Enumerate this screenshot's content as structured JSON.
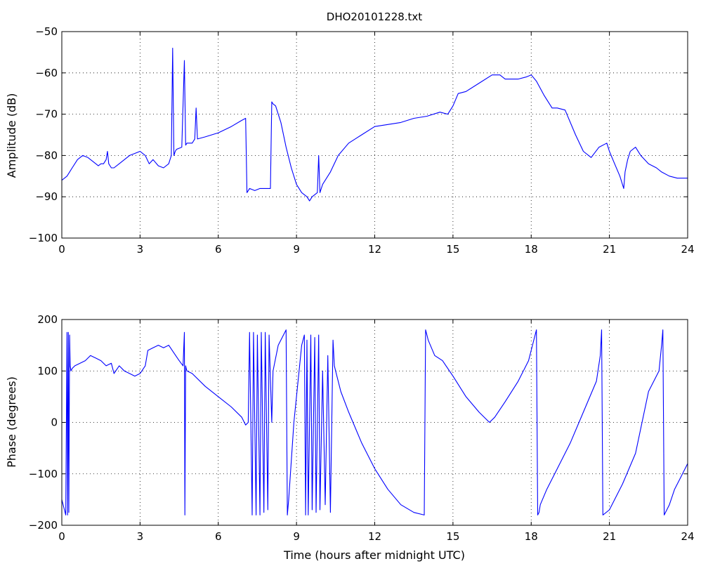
{
  "chart_data": [
    {
      "type": "line",
      "title": "DHO20101228.txt",
      "xlabel": "",
      "ylabel": "Amplitude (dB)",
      "xlim": [
        0,
        24
      ],
      "ylim": [
        -100,
        -50
      ],
      "xticks": [
        0,
        3,
        6,
        9,
        12,
        15,
        18,
        21,
        24
      ],
      "yticks": [
        -100,
        -90,
        -80,
        -70,
        -60,
        -50
      ],
      "grid": true,
      "line_color": "#0000ff",
      "x": [
        0.0,
        0.2,
        0.4,
        0.6,
        0.8,
        1.0,
        1.2,
        1.4,
        1.5,
        1.6,
        1.7,
        1.75,
        1.8,
        1.9,
        2.0,
        2.2,
        2.4,
        2.6,
        2.8,
        3.0,
        3.2,
        3.35,
        3.5,
        3.7,
        3.9,
        4.1,
        4.2,
        4.25,
        4.3,
        4.35,
        4.4,
        4.6,
        4.7,
        4.75,
        4.8,
        5.0,
        5.1,
        5.15,
        5.2,
        5.5,
        6.0,
        6.5,
        6.9,
        7.05,
        7.1,
        7.2,
        7.4,
        7.6,
        7.8,
        8.0,
        8.05,
        8.1,
        8.2,
        8.4,
        8.6,
        8.8,
        9.0,
        9.2,
        9.4,
        9.5,
        9.6,
        9.8,
        9.85,
        9.9,
        10.0,
        10.3,
        10.6,
        11.0,
        11.5,
        12.0,
        12.5,
        13.0,
        13.5,
        14.0,
        14.5,
        14.8,
        15.0,
        15.2,
        15.5,
        16.0,
        16.5,
        16.8,
        17.0,
        17.3,
        17.5,
        17.8,
        18.0,
        18.2,
        18.5,
        18.8,
        19.0,
        19.3,
        19.7,
        20.0,
        20.3,
        20.6,
        20.9,
        21.0,
        21.2,
        21.4,
        21.55,
        21.6,
        21.7,
        21.8,
        22.0,
        22.2,
        22.5,
        22.8,
        23.0,
        23.3,
        23.6,
        24.0
      ],
      "values": [
        -86,
        -85,
        -83,
        -81,
        -80,
        -80.5,
        -81.5,
        -82.5,
        -82,
        -82,
        -81,
        -79,
        -82,
        -83,
        -83,
        -82,
        -81,
        -80,
        -79.5,
        -79,
        -80,
        -82,
        -81,
        -82.5,
        -83,
        -82,
        -80,
        -54,
        -80,
        -79,
        -78.5,
        -78,
        -57,
        -77.5,
        -77,
        -77,
        -76,
        -68.5,
        -76,
        -75.5,
        -74.5,
        -73,
        -71.5,
        -71,
        -89,
        -88,
        -88.5,
        -88,
        -88,
        -88,
        -67,
        -67.5,
        -68,
        -72,
        -78,
        -83,
        -87,
        -89,
        -90,
        -91,
        -90,
        -89,
        -80,
        -89,
        -87,
        -84,
        -80,
        -77,
        -75,
        -73,
        -72.5,
        -72,
        -71,
        -70.5,
        -69.5,
        -70,
        -68,
        -65,
        -64.5,
        -62.5,
        -60.5,
        -60.5,
        -61.5,
        -61.5,
        -61.5,
        -61,
        -60.5,
        -62,
        -65.5,
        -68.5,
        -68.5,
        -69,
        -75,
        -79,
        -80.5,
        -78,
        -77,
        -79,
        -82,
        -85,
        -88,
        -84,
        -81,
        -79,
        -78,
        -80,
        -82,
        -83,
        -84,
        -85,
        -85.5,
        -85.5
      ]
    },
    {
      "type": "line",
      "title": "",
      "xlabel": "Time (hours after midnight UTC)",
      "ylabel": "Phase (degrees)",
      "xlim": [
        0,
        24
      ],
      "ylim": [
        -200,
        200
      ],
      "xticks": [
        0,
        3,
        6,
        9,
        12,
        15,
        18,
        21,
        24
      ],
      "yticks": [
        -200,
        -100,
        0,
        100,
        200
      ],
      "grid": true,
      "line_color": "#0000ff",
      "x": [
        0.0,
        0.1,
        0.15,
        0.2,
        0.22,
        0.25,
        0.27,
        0.3,
        0.32,
        0.35,
        0.4,
        0.5,
        0.7,
        0.9,
        1.1,
        1.3,
        1.5,
        1.7,
        1.9,
        2.0,
        2.2,
        2.4,
        2.6,
        2.8,
        3.0,
        3.2,
        3.3,
        3.5,
        3.7,
        3.9,
        4.1,
        4.3,
        4.5,
        4.65,
        4.7,
        4.72,
        4.75,
        4.77,
        4.8,
        5.0,
        5.5,
        6.0,
        6.5,
        6.9,
        7.05,
        7.15,
        7.2,
        7.3,
        7.35,
        7.45,
        7.5,
        7.6,
        7.65,
        7.75,
        7.8,
        7.9,
        7.95,
        8.05,
        8.1,
        8.3,
        8.6,
        8.65,
        8.7,
        8.9,
        9.1,
        9.2,
        9.3,
        9.35,
        9.4,
        9.45,
        9.55,
        9.6,
        9.7,
        9.75,
        9.85,
        9.9,
        10.0,
        10.1,
        10.2,
        10.3,
        10.4,
        10.45,
        10.5,
        10.7,
        11.0,
        11.5,
        12.0,
        12.5,
        13.0,
        13.5,
        13.9,
        13.95,
        14.0,
        14.05,
        14.3,
        14.6,
        15.0,
        15.5,
        16.0,
        16.4,
        16.6,
        17.0,
        17.5,
        17.9,
        18.2,
        18.25,
        18.3,
        18.35,
        18.6,
        19.0,
        19.5,
        20.0,
        20.5,
        20.65,
        20.7,
        20.75,
        21.0,
        21.5,
        22.0,
        22.5,
        22.9,
        23.0,
        23.05,
        23.1,
        23.3,
        23.5,
        23.7,
        24.0
      ],
      "values": [
        -150,
        -170,
        -180,
        175,
        -180,
        175,
        -175,
        170,
        110,
        100,
        105,
        110,
        115,
        120,
        130,
        125,
        120,
        110,
        115,
        95,
        110,
        100,
        95,
        90,
        95,
        110,
        140,
        145,
        150,
        145,
        150,
        135,
        120,
        110,
        175,
        -180,
        110,
        105,
        100,
        95,
        70,
        50,
        30,
        10,
        -5,
        0,
        175,
        -180,
        175,
        -180,
        170,
        -180,
        175,
        -175,
        175,
        -170,
        170,
        0,
        100,
        150,
        180,
        -180,
        -150,
        0,
        100,
        150,
        170,
        -180,
        160,
        -180,
        170,
        -170,
        165,
        -175,
        170,
        -170,
        100,
        -160,
        130,
        -175,
        160,
        110,
        100,
        60,
        20,
        -40,
        -90,
        -130,
        -160,
        -175,
        -180,
        180,
        170,
        160,
        130,
        120,
        90,
        50,
        20,
        0,
        10,
        40,
        80,
        120,
        180,
        -180,
        -175,
        -160,
        -130,
        -90,
        -40,
        20,
        80,
        130,
        180,
        -180,
        -170,
        -120,
        -60,
        60,
        100,
        150,
        180,
        -180,
        -160,
        -130,
        -110,
        -80
      ]
    }
  ]
}
